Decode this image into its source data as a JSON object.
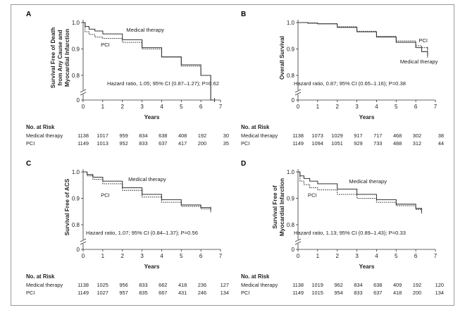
{
  "chart_data": [
    {
      "type": "line",
      "panel": "A",
      "ylabel": "Survival Free of Death from Any Cause and Myocardial Infarction",
      "xlabel": "Years",
      "xlim": [
        0,
        7
      ],
      "ylim": [
        0,
        1.0
      ],
      "yticks": [
        "0",
        "0.8",
        "0.9",
        "1.0"
      ],
      "xticks": [
        "0",
        "1",
        "2",
        "3",
        "4",
        "5",
        "6",
        "7"
      ],
      "annotation": "Hazard ratio, 1.05; 95% CI (0.87–1.27); P=0.62",
      "series": [
        {
          "name": "Medical therapy",
          "style": "solid",
          "x": [
            0,
            0.1,
            0.3,
            0.6,
            1,
            2,
            3,
            4,
            5,
            6,
            6.5,
            6.7
          ],
          "y": [
            1.0,
            0.985,
            0.975,
            0.968,
            0.957,
            0.935,
            0.905,
            0.87,
            0.84,
            0.8,
            0.785,
            0.78
          ]
        },
        {
          "name": "PCI",
          "style": "dashed",
          "x": [
            0,
            0.1,
            0.3,
            0.6,
            1,
            2,
            3,
            4,
            5,
            6,
            6.5,
            6.7
          ],
          "y": [
            1.0,
            0.965,
            0.955,
            0.945,
            0.94,
            0.925,
            0.9,
            0.87,
            0.835,
            0.8,
            0.79,
            0.775
          ]
        }
      ],
      "curve_labels": [
        {
          "text": "Medical therapy",
          "x": 2.2,
          "y": 0.965
        },
        {
          "text": "PCI",
          "x": 0.9,
          "y": 0.91
        }
      ],
      "risk_table": {
        "title": "No. at Risk",
        "rows": [
          {
            "label": "Medical therapy",
            "values": [
              "1138",
              "1017",
              "959",
              "834",
              "638",
              "408",
              "192",
              "30"
            ]
          },
          {
            "label": "PCI",
            "values": [
              "1149",
              "1013",
              "952",
              "833",
              "637",
              "417",
              "200",
              "35"
            ]
          }
        ]
      }
    },
    {
      "type": "line",
      "panel": "B",
      "ylabel": "Overall Survival",
      "xlabel": "Years",
      "xlim": [
        0,
        7
      ],
      "ylim": [
        0,
        1.0
      ],
      "yticks": [
        "0",
        "0.8",
        "0.9",
        "1.0"
      ],
      "xticks": [
        "0",
        "1",
        "2",
        "3",
        "4",
        "5",
        "6",
        "7"
      ],
      "annotation": "Hazard ratio, 0.87; 95% CI (0.65–1.16); P=0.38",
      "series": [
        {
          "name": "Medical therapy",
          "style": "solid",
          "x": [
            0,
            0.5,
            1,
            2,
            3,
            4,
            5,
            6,
            6.3,
            6.6
          ],
          "y": [
            1.0,
            0.998,
            0.995,
            0.982,
            0.965,
            0.945,
            0.925,
            0.905,
            0.89,
            0.875
          ]
        },
        {
          "name": "PCI",
          "style": "dashed",
          "x": [
            0,
            0.5,
            1,
            2,
            3,
            4,
            5,
            6,
            6.3,
            6.6
          ],
          "y": [
            1.0,
            0.998,
            0.996,
            0.984,
            0.967,
            0.948,
            0.93,
            0.912,
            0.905,
            0.9
          ]
        }
      ],
      "curve_labels": [
        {
          "text": "PCI",
          "x": 6.15,
          "y": 0.925
        },
        {
          "text": "Medical therapy",
          "x": 5.2,
          "y": 0.845
        }
      ],
      "risk_table": {
        "title": "No. at Risk",
        "rows": [
          {
            "label": "Medical therapy",
            "values": [
              "1138",
              "1073",
              "1029",
              "917",
              "717",
              "468",
              "302",
              "38"
            ]
          },
          {
            "label": "PCI",
            "values": [
              "1149",
              "1094",
              "1051",
              "929",
              "733",
              "488",
              "312",
              "44"
            ]
          }
        ]
      }
    },
    {
      "type": "line",
      "panel": "C",
      "ylabel": "Survival Free of ACS",
      "xlabel": "Years",
      "xlim": [
        0,
        7
      ],
      "ylim": [
        0,
        1.0
      ],
      "yticks": [
        "0",
        "0.8",
        "0.9",
        "1.0"
      ],
      "xticks": [
        "0",
        "1",
        "2",
        "3",
        "4",
        "5",
        "6",
        "7"
      ],
      "annotation": "Hazard ratio, 1.07; 95% CI (0.84–1.37); P=0.56",
      "series": [
        {
          "name": "Medical therapy",
          "style": "solid",
          "x": [
            0,
            0.2,
            0.5,
            1,
            2,
            3,
            4,
            5,
            6,
            6.5
          ],
          "y": [
            1.0,
            0.99,
            0.98,
            0.965,
            0.94,
            0.915,
            0.895,
            0.875,
            0.865,
            0.86
          ]
        },
        {
          "name": "PCI",
          "style": "dashed",
          "x": [
            0,
            0.2,
            0.5,
            1,
            2,
            3,
            4,
            5,
            6,
            6.5
          ],
          "y": [
            1.0,
            0.985,
            0.972,
            0.955,
            0.93,
            0.905,
            0.885,
            0.87,
            0.86,
            0.855
          ]
        }
      ],
      "curve_labels": [
        {
          "text": "Medical therapy",
          "x": 2.3,
          "y": 0.965
        },
        {
          "text": "PCI",
          "x": 0.9,
          "y": 0.905
        }
      ],
      "risk_table": {
        "title": "No. at Risk",
        "rows": [
          {
            "label": "Medical therapy",
            "values": [
              "1138",
              "1025",
              "956",
              "833",
              "662",
              "418",
              "236",
              "127"
            ]
          },
          {
            "label": "PCI",
            "values": [
              "1149",
              "1027",
              "957",
              "835",
              "667",
              "431",
              "246",
              "134"
            ]
          }
        ]
      }
    },
    {
      "type": "line",
      "panel": "D",
      "ylabel": "Survival Free of Myocardial Infarction",
      "xlabel": "Years",
      "xlim": [
        0,
        7
      ],
      "ylim": [
        0,
        1.0
      ],
      "yticks": [
        "0",
        "0.8",
        "0.9",
        "1.0"
      ],
      "xticks": [
        "0",
        "1",
        "2",
        "3",
        "4",
        "5",
        "6",
        "7"
      ],
      "annotation": "Hazard ratio, 1.13; 95% CI (0.89–1.43); P=0.33",
      "series": [
        {
          "name": "Medical therapy",
          "style": "solid",
          "x": [
            0,
            0.1,
            0.3,
            0.6,
            1,
            2,
            3,
            4,
            5,
            6,
            6.3
          ],
          "y": [
            1.0,
            0.985,
            0.975,
            0.965,
            0.955,
            0.935,
            0.915,
            0.895,
            0.878,
            0.862,
            0.855
          ]
        },
        {
          "name": "PCI",
          "style": "dashed",
          "x": [
            0,
            0.1,
            0.3,
            0.6,
            1,
            2,
            3,
            4,
            5,
            6,
            6.3
          ],
          "y": [
            1.0,
            0.965,
            0.952,
            0.94,
            0.932,
            0.915,
            0.9,
            0.885,
            0.872,
            0.858,
            0.85
          ]
        }
      ],
      "curve_labels": [
        {
          "text": "Medical therapy",
          "x": 2.6,
          "y": 0.958
        },
        {
          "text": "PCI",
          "x": 0.5,
          "y": 0.905
        }
      ],
      "risk_table": {
        "title": "No. at Risk",
        "rows": [
          {
            "label": "Medical therapy",
            "values": [
              "1138",
              "1019",
              "962",
              "834",
              "638",
              "409",
              "192",
              "120"
            ]
          },
          {
            "label": "PCI",
            "values": [
              "1149",
              "1015",
              "954",
              "833",
              "637",
              "418",
              "200",
              "134"
            ]
          }
        ]
      }
    }
  ]
}
